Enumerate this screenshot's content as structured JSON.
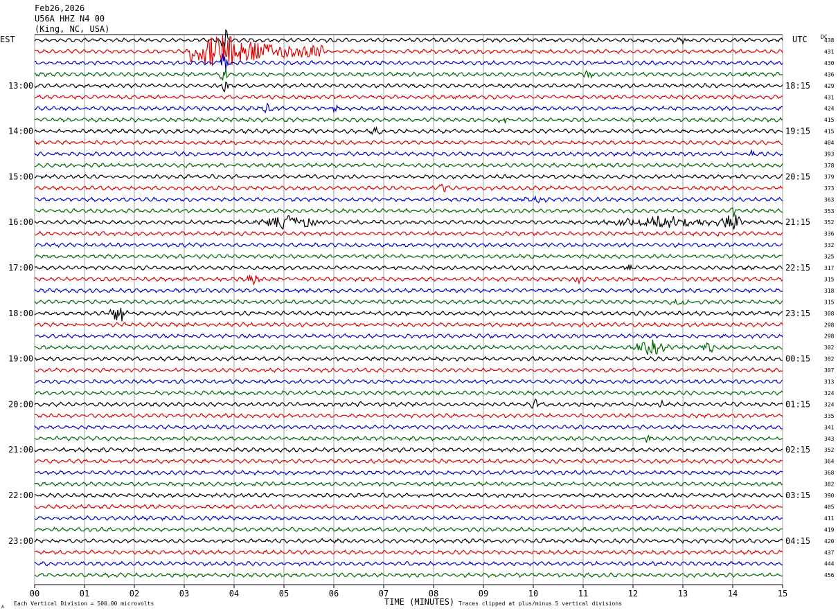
{
  "header": {
    "date": "Feb26,2026",
    "station": "U56A HHZ N4 00",
    "location": "(King, NC, USA)"
  },
  "labels": {
    "left_tz": "EST",
    "right_tz": "UTC",
    "dc_header": "DC",
    "xlabel": "TIME (MINUTES)",
    "scale_note": "Each Vertical Division =  500.00 microvolts",
    "clip_note": "Traces clipped at plus/minus 5 vertical divisions",
    "corner_mark": "A"
  },
  "colors": {
    "cycle": [
      "#000000",
      "#dd0000",
      "#0000cc",
      "#006600"
    ],
    "grid": "#888888"
  },
  "chart_data": {
    "type": "line",
    "title": "",
    "xlabel": "TIME (MINUTES)",
    "xlim": [
      0,
      15
    ],
    "x_ticks": [
      "00",
      "01",
      "02",
      "03",
      "04",
      "05",
      "06",
      "07",
      "08",
      "09",
      "10",
      "11",
      "12",
      "13",
      "14",
      "15"
    ],
    "est_hour_labels": [
      "13:00",
      "14:00",
      "15:00",
      "16:00",
      "17:00",
      "18:00",
      "19:00",
      "20:00",
      "21:00",
      "22:00",
      "23:00"
    ],
    "utc_hour_labels": [
      "18:15",
      "19:15",
      "20:15",
      "21:15",
      "22:15",
      "23:15",
      "00:15",
      "01:15",
      "02:15",
      "03:15",
      "04:15"
    ],
    "dc_offsets": [
      438,
      431,
      430,
      436,
      429,
      431,
      424,
      415,
      415,
      404,
      393,
      378,
      379,
      373,
      363,
      353,
      352,
      336,
      332,
      325,
      317,
      315,
      318,
      315,
      308,
      298,
      298,
      302,
      302,
      307,
      313,
      324,
      324,
      335,
      341,
      343,
      352,
      364,
      368,
      382,
      390,
      405,
      411,
      419,
      420,
      437,
      444,
      456
    ],
    "events": [
      {
        "trace": 1,
        "start": 3.1,
        "end": 5.8,
        "amp": 3.0,
        "peak": 3.75,
        "big": true
      },
      {
        "trace": 0,
        "start": 3.7,
        "end": 3.9,
        "amp": 3.5
      },
      {
        "trace": 2,
        "start": 3.7,
        "end": 3.9,
        "amp": 2.5
      },
      {
        "trace": 3,
        "start": 3.7,
        "end": 3.9,
        "amp": 2.0
      },
      {
        "trace": 4,
        "start": 3.7,
        "end": 3.9,
        "amp": 1.6
      },
      {
        "trace": 0,
        "start": 12.85,
        "end": 13.15,
        "amp": 0.5
      },
      {
        "trace": 3,
        "start": 10.95,
        "end": 11.25,
        "amp": 0.8
      },
      {
        "trace": 6,
        "start": 4.45,
        "end": 4.8,
        "amp": 0.8
      },
      {
        "trace": 6,
        "start": 5.9,
        "end": 6.2,
        "amp": 0.6
      },
      {
        "trace": 6,
        "start": 8.7,
        "end": 8.95,
        "amp": 0.6
      },
      {
        "trace": 7,
        "start": 9.25,
        "end": 9.6,
        "amp": 0.6
      },
      {
        "trace": 8,
        "start": 6.5,
        "end": 7.1,
        "amp": 0.5
      },
      {
        "trace": 10,
        "start": 14.3,
        "end": 14.5,
        "amp": 0.7
      },
      {
        "trace": 13,
        "start": 8.0,
        "end": 8.35,
        "amp": 0.8
      },
      {
        "trace": 14,
        "start": 9.5,
        "end": 10.5,
        "amp": 0.5
      },
      {
        "trace": 15,
        "start": 13.95,
        "end": 14.1,
        "amp": 1.2
      },
      {
        "trace": 16,
        "start": 4.3,
        "end": 5.9,
        "amp": 1.3
      },
      {
        "trace": 16,
        "start": 11.0,
        "end": 14.4,
        "amp": 1.0
      },
      {
        "trace": 16,
        "start": 13.7,
        "end": 14.3,
        "amp": 1.5
      },
      {
        "trace": 17,
        "start": 13.6,
        "end": 13.85,
        "amp": 0.6
      },
      {
        "trace": 20,
        "start": 11.85,
        "end": 12.0,
        "amp": 0.7
      },
      {
        "trace": 21,
        "start": 4.2,
        "end": 4.6,
        "amp": 1.0
      },
      {
        "trace": 21,
        "start": 10.75,
        "end": 11.05,
        "amp": 0.8
      },
      {
        "trace": 23,
        "start": 10.65,
        "end": 10.85,
        "amp": 0.6
      },
      {
        "trace": 23,
        "start": 12.7,
        "end": 13.15,
        "amp": 0.8
      },
      {
        "trace": 24,
        "start": 1.45,
        "end": 1.95,
        "amp": 2.0
      },
      {
        "trace": 27,
        "start": 11.9,
        "end": 12.8,
        "amp": 1.3
      },
      {
        "trace": 27,
        "start": 13.3,
        "end": 13.7,
        "amp": 1.1
      },
      {
        "trace": 32,
        "start": 6.4,
        "end": 6.6,
        "amp": 0.4
      },
      {
        "trace": 32,
        "start": 9.9,
        "end": 10.2,
        "amp": 0.7
      },
      {
        "trace": 32,
        "start": 12.4,
        "end": 12.7,
        "amp": 0.8
      },
      {
        "trace": 35,
        "start": 12.05,
        "end": 12.5,
        "amp": 0.7
      },
      {
        "trace": 38,
        "start": 4.3,
        "end": 4.45,
        "amp": 0.4
      }
    ]
  }
}
